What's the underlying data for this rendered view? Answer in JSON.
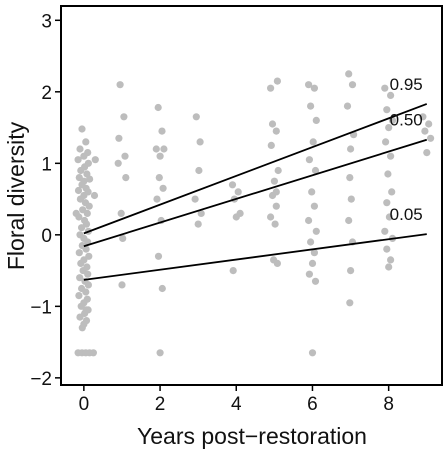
{
  "chart_data": {
    "type": "scatter",
    "title": "",
    "xlabel": "Years post−restoration",
    "ylabel": "Floral diversity",
    "xlim": [
      -0.6,
      9.4
    ],
    "ylim": [
      -2.1,
      3.2
    ],
    "xticks": [
      0,
      2,
      4,
      6,
      8
    ],
    "xtick_labels": [
      "0",
      "2",
      "4",
      "6",
      "8"
    ],
    "yticks": [
      -2,
      -1,
      0,
      1,
      2,
      3
    ],
    "ytick_labels": [
      "−2",
      "−1",
      "0",
      "1",
      "2",
      "3"
    ],
    "grid": false,
    "legend": "none",
    "point_color": "#bdbdbd",
    "line_color": "#000000",
    "scatter_points": [
      [
        -0.05,
        1.48
      ],
      [
        0.05,
        1.3
      ],
      [
        -0.1,
        1.2
      ],
      [
        0.1,
        1.15
      ],
      [
        0.0,
        1.1
      ],
      [
        -0.15,
        1.05
      ],
      [
        0.12,
        1.0
      ],
      [
        0.02,
        0.95
      ],
      [
        -0.08,
        0.9
      ],
      [
        0.08,
        0.85
      ],
      [
        -0.12,
        0.8
      ],
      [
        0.15,
        0.78
      ],
      [
        0.0,
        0.75
      ],
      [
        -0.05,
        0.7
      ],
      [
        0.06,
        0.65
      ],
      [
        -0.14,
        0.62
      ],
      [
        0.11,
        0.6
      ],
      [
        0.0,
        0.55
      ],
      [
        -0.09,
        0.5
      ],
      [
        0.04,
        0.45
      ],
      [
        0.14,
        0.4
      ],
      [
        -0.03,
        0.35
      ],
      [
        0.09,
        0.3
      ],
      [
        -0.13,
        0.25
      ],
      [
        0.02,
        0.2
      ],
      [
        0.07,
        0.15
      ],
      [
        -0.06,
        0.1
      ],
      [
        0.12,
        0.05
      ],
      [
        -0.1,
        0.0
      ],
      [
        0.0,
        -0.05
      ],
      [
        0.1,
        -0.1
      ],
      [
        -0.04,
        -0.15
      ],
      [
        0.06,
        -0.2
      ],
      [
        -0.12,
        -0.25
      ],
      [
        0.13,
        -0.3
      ],
      [
        0.0,
        -0.35
      ],
      [
        -0.08,
        -0.4
      ],
      [
        0.08,
        -0.45
      ],
      [
        -0.02,
        -0.5
      ],
      [
        0.1,
        -0.55
      ],
      [
        -0.11,
        -0.6
      ],
      [
        0.03,
        -0.65
      ],
      [
        0.12,
        -0.7
      ],
      [
        -0.06,
        -0.75
      ],
      [
        0.05,
        -0.8
      ],
      [
        -0.13,
        -0.85
      ],
      [
        0.09,
        -0.9
      ],
      [
        0.0,
        -0.95
      ],
      [
        -0.07,
        -1.0
      ],
      [
        0.11,
        -1.05
      ],
      [
        0.02,
        -1.1
      ],
      [
        -0.1,
        -1.15
      ],
      [
        0.07,
        -1.2
      ],
      [
        0.0,
        -1.25
      ],
      [
        -0.04,
        -1.3
      ],
      [
        0.06,
        -1.05
      ],
      [
        -0.15,
        -1.65
      ],
      [
        -0.05,
        -1.65
      ],
      [
        0.05,
        -1.65
      ],
      [
        0.15,
        -1.65
      ],
      [
        0.25,
        -1.65
      ],
      [
        0.3,
        1.05
      ],
      [
        0.28,
        0.55
      ],
      [
        -0.2,
        0.3
      ],
      [
        0.95,
        2.1
      ],
      [
        1.05,
        1.65
      ],
      [
        0.92,
        1.35
      ],
      [
        1.08,
        1.1
      ],
      [
        0.9,
        1.0
      ],
      [
        1.1,
        0.8
      ],
      [
        0.98,
        0.3
      ],
      [
        1.02,
        -0.05
      ],
      [
        1.0,
        -0.7
      ],
      [
        1.95,
        1.78
      ],
      [
        2.05,
        1.45
      ],
      [
        1.9,
        1.2
      ],
      [
        2.1,
        1.2
      ],
      [
        2.0,
        1.1
      ],
      [
        1.98,
        0.8
      ],
      [
        2.08,
        0.65
      ],
      [
        1.92,
        0.5
      ],
      [
        2.03,
        0.2
      ],
      [
        1.96,
        -0.3
      ],
      [
        2.06,
        -0.75
      ],
      [
        2.0,
        -1.65
      ],
      [
        2.95,
        1.65
      ],
      [
        3.05,
        1.3
      ],
      [
        3.02,
        0.9
      ],
      [
        2.92,
        0.5
      ],
      [
        3.08,
        0.3
      ],
      [
        3.0,
        0.15
      ],
      [
        3.9,
        0.7
      ],
      [
        4.05,
        0.6
      ],
      [
        3.95,
        0.5
      ],
      [
        4.1,
        0.3
      ],
      [
        4.0,
        0.25
      ],
      [
        3.92,
        -0.5
      ],
      [
        4.9,
        2.05
      ],
      [
        5.08,
        2.15
      ],
      [
        4.95,
        1.55
      ],
      [
        5.05,
        1.45
      ],
      [
        4.92,
        1.25
      ],
      [
        5.1,
        0.9
      ],
      [
        5.0,
        0.75
      ],
      [
        4.95,
        0.55
      ],
      [
        5.05,
        0.4
      ],
      [
        4.9,
        0.25
      ],
      [
        5.02,
        0.15
      ],
      [
        4.98,
        -0.35
      ],
      [
        5.08,
        -0.4
      ],
      [
        5.05,
        0.6
      ],
      [
        5.9,
        2.1
      ],
      [
        6.05,
        2.05
      ],
      [
        5.95,
        1.8
      ],
      [
        6.1,
        1.6
      ],
      [
        6.02,
        1.3
      ],
      [
        5.92,
        1.05
      ],
      [
        6.08,
        0.9
      ],
      [
        5.98,
        0.6
      ],
      [
        6.05,
        0.4
      ],
      [
        5.9,
        0.2
      ],
      [
        6.1,
        0.05
      ],
      [
        5.95,
        -0.1
      ],
      [
        6.05,
        -0.25
      ],
      [
        6.0,
        -0.4
      ],
      [
        5.92,
        -0.55
      ],
      [
        6.08,
        -0.65
      ],
      [
        6.0,
        -1.65
      ],
      [
        6.95,
        2.25
      ],
      [
        7.05,
        2.1
      ],
      [
        6.92,
        1.8
      ],
      [
        7.08,
        1.4
      ],
      [
        7.0,
        1.2
      ],
      [
        6.98,
        0.8
      ],
      [
        7.02,
        0.5
      ],
      [
        6.95,
        0.2
      ],
      [
        7.05,
        -0.1
      ],
      [
        7.0,
        -0.5
      ],
      [
        6.98,
        -0.95
      ],
      [
        7.9,
        2.05
      ],
      [
        8.05,
        1.95
      ],
      [
        7.95,
        1.75
      ],
      [
        8.1,
        1.6
      ],
      [
        8.0,
        1.5
      ],
      [
        7.92,
        1.3
      ],
      [
        8.05,
        1.1
      ],
      [
        7.98,
        0.85
      ],
      [
        8.08,
        0.6
      ],
      [
        7.95,
        0.45
      ],
      [
        8.02,
        0.25
      ],
      [
        7.9,
        0.05
      ],
      [
        8.1,
        -0.05
      ],
      [
        7.95,
        -0.2
      ],
      [
        8.05,
        -0.35
      ],
      [
        8.0,
        -0.45
      ],
      [
        8.9,
        1.65
      ],
      [
        9.05,
        1.55
      ],
      [
        8.95,
        1.45
      ],
      [
        9.1,
        1.35
      ],
      [
        9.0,
        1.15
      ]
    ],
    "series": [
      {
        "name": "0.95",
        "x": [
          0,
          9
        ],
        "y": [
          0.02,
          1.83
        ]
      },
      {
        "name": "0.50",
        "x": [
          0,
          9
        ],
        "y": [
          -0.16,
          1.33
        ]
      },
      {
        "name": "0.05",
        "x": [
          0,
          9
        ],
        "y": [
          -0.63,
          0.01
        ]
      }
    ]
  }
}
